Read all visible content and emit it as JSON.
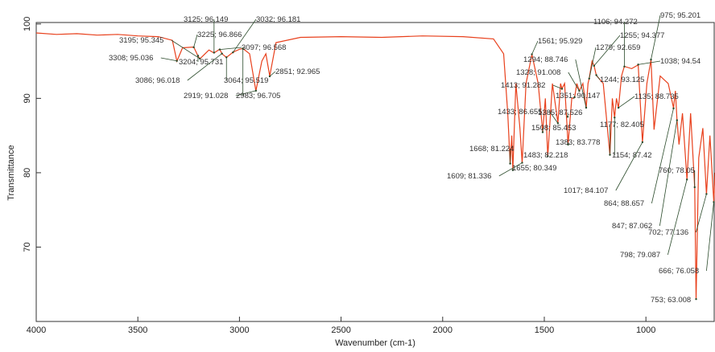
{
  "chart_data": {
    "type": "line",
    "xlabel": "Wavenumber (cm-1)",
    "ylabel": "Transmittance",
    "xlim": [
      4000,
      660
    ],
    "ylim": [
      60,
      100.2
    ],
    "xticks": [
      4000,
      3500,
      3000,
      2500,
      2000,
      1500,
      1000
    ],
    "yticks": [
      70,
      80,
      90,
      100
    ],
    "series": [
      {
        "color": "#e8401c",
        "x": [
          4000,
          3900,
          3800,
          3700,
          3600,
          3500,
          3400,
          3330,
          3308,
          3280,
          3225,
          3204,
          3195,
          3150,
          3125,
          3097,
          3086,
          3064,
          3032,
          3000,
          2983,
          2950,
          2919,
          2890,
          2870,
          2851,
          2820,
          2700,
          2500,
          2300,
          2100,
          1900,
          1750,
          1700,
          1680,
          1668,
          1660,
          1655,
          1640,
          1620,
          1609,
          1590,
          1561,
          1530,
          1508,
          1495,
          1483,
          1460,
          1433,
          1420,
          1413,
          1400,
          1383,
          1365,
          1351,
          1340,
          1328,
          1310,
          1294,
          1285,
          1279,
          1265,
          1255,
          1244,
          1210,
          1177,
          1165,
          1154,
          1145,
          1135,
          1120,
          1106,
          1070,
          1038,
          1017,
          995,
          975,
          960,
          930,
          890,
          864,
          855,
          847,
          837,
          820,
          798,
          780,
          760,
          753,
          740,
          720,
          702,
          685,
          666,
          660
        ],
        "values": [
          98.8,
          98.6,
          98.7,
          98.5,
          98.6,
          98.4,
          98.3,
          97.8,
          95.0,
          96.8,
          96.9,
          95.7,
          95.3,
          96.5,
          96.1,
          96.6,
          96.0,
          95.5,
          96.2,
          96.6,
          96.7,
          96.0,
          91.0,
          95.0,
          96.0,
          93.0,
          97.5,
          98.2,
          98.3,
          98.2,
          98.4,
          98.3,
          98.0,
          96.0,
          88,
          81.2,
          85,
          80.3,
          92,
          86,
          81.3,
          92,
          95.9,
          92,
          85.5,
          90,
          82.2,
          92,
          86.7,
          92,
          91.3,
          92,
          83.8,
          90,
          90.1,
          92,
          91.0,
          92,
          88.7,
          92,
          92.7,
          95,
          94.4,
          93.1,
          92,
          82.4,
          90,
          87.4,
          90,
          88.7,
          93,
          94.3,
          94,
          94.5,
          84.1,
          92,
          95.2,
          85.8,
          93,
          92,
          88.7,
          91,
          87.1,
          83.8,
          88,
          79.1,
          88,
          78.0,
          63.0,
          82,
          86,
          77.1,
          85,
          76.1,
          80
        ]
      }
    ],
    "annotations": [
      {
        "text": "3308; 95.036",
        "x": 3308,
        "y": 95.036
      },
      {
        "text": "3195; 95.345",
        "x": 3195,
        "y": 95.345
      },
      {
        "text": "3225; 96.866",
        "x": 3225,
        "y": 96.866
      },
      {
        "text": "3125; 96.149",
        "x": 3125,
        "y": 96.149
      },
      {
        "text": "3032; 96.181",
        "x": 3032,
        "y": 96.181
      },
      {
        "text": "3097; 96.568",
        "x": 3097,
        "y": 96.568
      },
      {
        "text": "3204; 95.731",
        "x": 3204,
        "y": 95.731
      },
      {
        "text": "3086; 96.018",
        "x": 3086,
        "y": 96.018
      },
      {
        "text": "3064; 95.519",
        "x": 3064,
        "y": 95.519
      },
      {
        "text": "2851; 92.965",
        "x": 2851,
        "y": 92.965
      },
      {
        "text": "2919; 91.028",
        "x": 2919,
        "y": 91.028
      },
      {
        "text": "2983; 96.705",
        "x": 2983,
        "y": 96.705
      },
      {
        "text": "1561; 95.929",
        "x": 1561,
        "y": 95.929
      },
      {
        "text": "1294; 88.746",
        "x": 1294,
        "y": 88.746
      },
      {
        "text": "1328; 91.008",
        "x": 1328,
        "y": 91.008
      },
      {
        "text": "1413; 91.282",
        "x": 1413,
        "y": 91.282
      },
      {
        "text": "1433; 86.655",
        "x": 1433,
        "y": 86.655
      },
      {
        "text": "1351; 90.147",
        "x": 1351,
        "y": 90.147
      },
      {
        "text": "1244; 93.125",
        "x": 1244,
        "y": 93.125
      },
      {
        "text": "1106; 94.272",
        "x": 1106,
        "y": 94.272
      },
      {
        "text": "975; 95.201",
        "x": 975,
        "y": 95.201
      },
      {
        "text": "1255; 94.377",
        "x": 1255,
        "y": 94.377
      },
      {
        "text": "1279; 92.659",
        "x": 1279,
        "y": 92.659
      },
      {
        "text": "1038; 94.54",
        "x": 1038,
        "y": 94.54
      },
      {
        "text": "1135; 88.735",
        "x": 1135,
        "y": 88.735
      },
      {
        "text": "1385; 87.526",
        "x": 1385,
        "y": 87.526
      },
      {
        "text": "1508; 85.453",
        "x": 1508,
        "y": 85.453
      },
      {
        "text": "1383; 83.778",
        "x": 1383,
        "y": 83.778
      },
      {
        "text": "1483; 82.218",
        "x": 1483,
        "y": 82.218
      },
      {
        "text": "1177; 82.405",
        "x": 1177,
        "y": 82.405
      },
      {
        "text": "1154; 87.42",
        "x": 1154,
        "y": 87.42
      },
      {
        "text": "1668; 81.224",
        "x": 1668,
        "y": 81.224
      },
      {
        "text": "1655; 80.349",
        "x": 1655,
        "y": 80.349
      },
      {
        "text": "1609; 81.336",
        "x": 1609,
        "y": 81.336
      },
      {
        "text": "1017; 84.107",
        "x": 1017,
        "y": 84.107
      },
      {
        "text": "864; 88.657",
        "x": 864,
        "y": 88.657
      },
      {
        "text": "847; 87.062",
        "x": 847,
        "y": 87.062
      },
      {
        "text": "702; 77.136",
        "x": 702,
        "y": 77.136
      },
      {
        "text": "798; 79.087",
        "x": 798,
        "y": 79.087
      },
      {
        "text": "666; 76.058",
        "x": 666,
        "y": 76.058
      },
      {
        "text": "753; 63.008",
        "x": 753,
        "y": 63.008
      },
      {
        "text": "760; 78.05",
        "x": 760,
        "y": 78.05
      }
    ]
  }
}
